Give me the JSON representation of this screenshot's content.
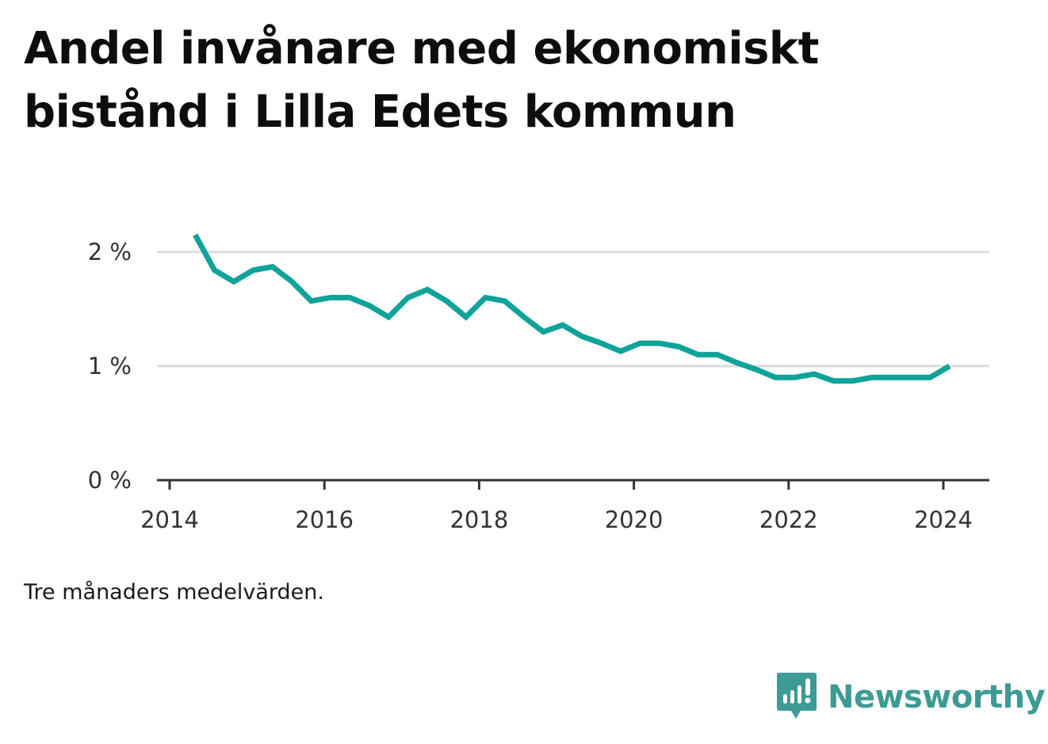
{
  "title": "Andel invånare med ekonomiskt bistånd i Lilla Edets kommun",
  "note": "Tre månaders medelvärden.",
  "brand": {
    "name": "Newsworthy",
    "color": "#3d9a94"
  },
  "chart_data": {
    "type": "line",
    "title": "Andel invånare med ekonomiskt bistånd i Lilla Edets kommun",
    "xlabel": "",
    "ylabel": "",
    "line_color": "#0fa39a",
    "grid": true,
    "xlim": [
      2014.0,
      2024.6
    ],
    "ylim": [
      0,
      2.25
    ],
    "x_ticks": [
      {
        "value": 2014,
        "label": "2014"
      },
      {
        "value": 2016,
        "label": "2016"
      },
      {
        "value": 2018,
        "label": "2018"
      },
      {
        "value": 2020,
        "label": "2020"
      },
      {
        "value": 2022,
        "label": "2022"
      },
      {
        "value": 2024,
        "label": "2024"
      }
    ],
    "y_ticks": [
      {
        "value": 0,
        "label": "0 %"
      },
      {
        "value": 1,
        "label": "1 %"
      },
      {
        "value": 2,
        "label": "2 %"
      }
    ],
    "x": [
      2014.33,
      2014.58,
      2014.83,
      2015.08,
      2015.33,
      2015.58,
      2015.83,
      2016.08,
      2016.33,
      2016.58,
      2016.83,
      2017.08,
      2017.33,
      2017.58,
      2017.83,
      2018.08,
      2018.33,
      2018.58,
      2018.83,
      2019.08,
      2019.33,
      2019.58,
      2019.83,
      2020.08,
      2020.33,
      2020.58,
      2020.83,
      2021.08,
      2021.33,
      2021.58,
      2021.83,
      2022.08,
      2022.33,
      2022.58,
      2022.83,
      2023.08,
      2023.33,
      2023.58,
      2023.83,
      2024.08
    ],
    "series": [
      {
        "values": [
          2.15,
          1.84,
          1.74,
          1.84,
          1.87,
          1.74,
          1.57,
          1.6,
          1.6,
          1.53,
          1.43,
          1.6,
          1.67,
          1.57,
          1.43,
          1.6,
          1.57,
          1.43,
          1.3,
          1.36,
          1.26,
          1.2,
          1.13,
          1.2,
          1.2,
          1.17,
          1.1,
          1.1,
          1.03,
          0.97,
          0.9,
          0.9,
          0.93,
          0.87,
          0.87,
          0.9,
          0.9,
          0.9,
          0.9,
          1.0
        ]
      }
    ]
  }
}
